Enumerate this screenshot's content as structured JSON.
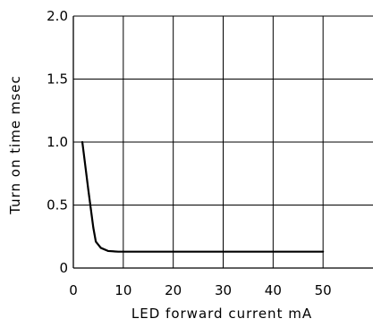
{
  "chart_data": {
    "type": "line",
    "title": "",
    "xlabel": "LED forward current mA",
    "ylabel": "Turn on time msec",
    "xlim": [
      0,
      60
    ],
    "ylim": [
      0,
      2.0
    ],
    "x_ticks": [
      0,
      10,
      20,
      30,
      40,
      50
    ],
    "x_tick_labels": [
      "0",
      "10",
      "20",
      "30",
      "40",
      "50"
    ],
    "y_ticks": [
      0,
      0.5,
      1.0,
      1.5,
      2.0
    ],
    "y_tick_labels": [
      "0",
      "0.5",
      "1.0",
      "1.5",
      "2.0"
    ],
    "grid": true,
    "series": [
      {
        "x": [
          1.8,
          3.0,
          4.0,
          4.5,
          5.5,
          7.0,
          9.0,
          15,
          20,
          30,
          40,
          50
        ],
        "y": [
          1.0,
          0.62,
          0.32,
          0.21,
          0.16,
          0.135,
          0.13,
          0.13,
          0.13,
          0.13,
          0.13,
          0.13
        ],
        "color": "#000000"
      }
    ]
  }
}
